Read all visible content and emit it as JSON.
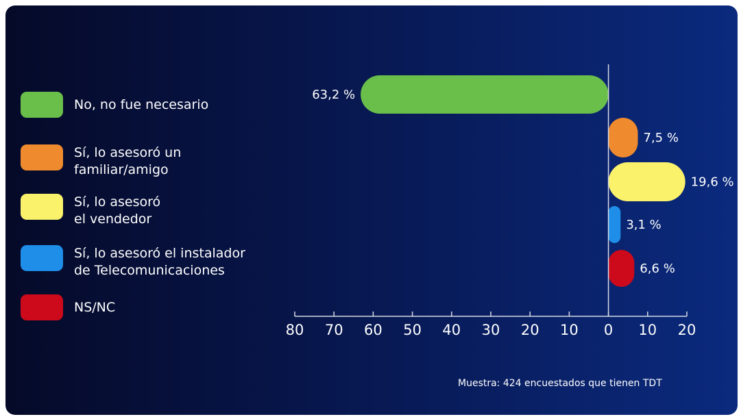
{
  "chart_data": {
    "type": "bar",
    "orientation": "horizontal",
    "categories": [
      "No, no fue necesario",
      "Sí, lo asesoró un\nfamiliar/amigo",
      "Sí, lo asesoró\nel vendedor",
      "Sí, lo asesoró el instalador\nde Telecomunicaciones",
      "NS/NC"
    ],
    "values": [
      63.2,
      7.5,
      19.6,
      3.1,
      6.6
    ],
    "directions": [
      -1,
      1,
      1,
      1,
      1
    ],
    "value_labels": [
      "63,2 %",
      "7,5 %",
      "19,6 %",
      "3,1 %",
      "6,6 %"
    ],
    "colors": [
      "#6abf4b",
      "#ef8a2e",
      "#fbf26b",
      "#1e8ee8",
      "#cc0a1c"
    ],
    "xlim": [
      -80,
      20
    ],
    "xticks": [
      -80,
      -70,
      -60,
      -50,
      -40,
      -30,
      -20,
      -10,
      0,
      10,
      20
    ],
    "xtick_labels": [
      "80",
      "70",
      "60",
      "50",
      "40",
      "30",
      "20",
      "10",
      "0",
      "10",
      "20"
    ],
    "legend_position": "left",
    "grid": false
  },
  "footnote": "Muestra: 424 encuestados que tienen TDT"
}
